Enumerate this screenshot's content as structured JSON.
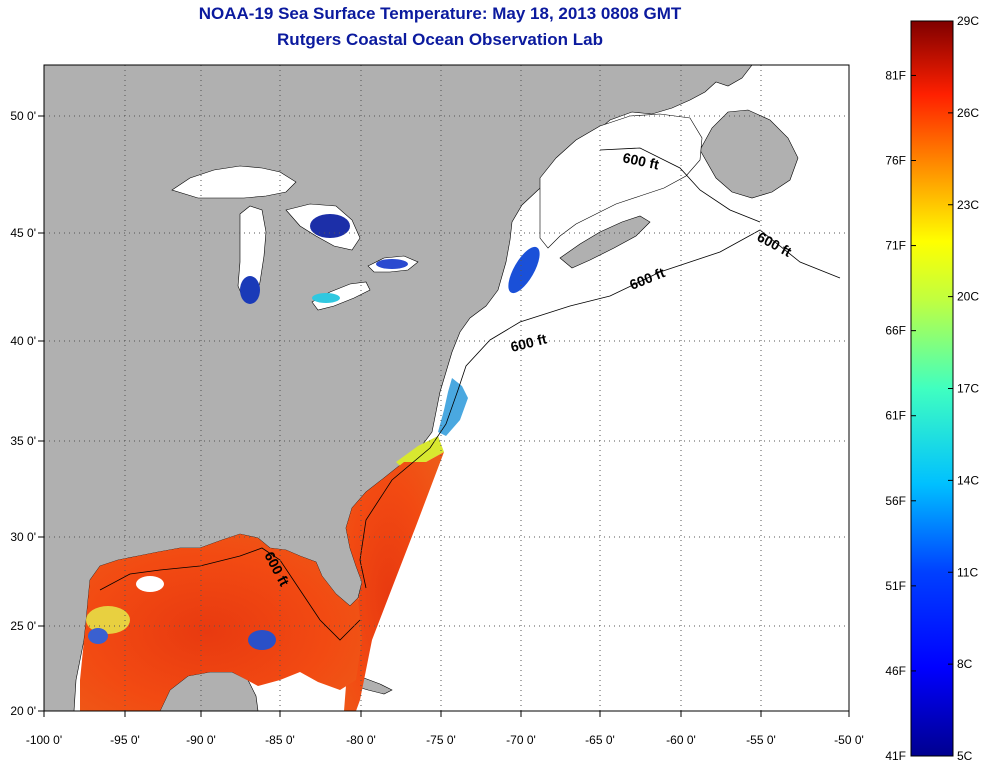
{
  "header": {
    "title": "NOAA-19 Sea Surface Temperature:  May 18, 2013 0808 GMT",
    "subtitle": "Rutgers Coastal Ocean Observation Lab"
  },
  "map": {
    "x_ticks": [
      "-100 0'",
      "-95 0'",
      "-90 0'",
      "-85 0'",
      "-80 0'",
      "-75 0'",
      "-70 0'",
      "-65 0'",
      "-60 0'",
      "-55 0'",
      "-50 0'"
    ],
    "y_ticks": [
      "50 0'",
      "45 0'",
      "40 0'",
      "35 0'",
      "30 0'",
      "25 0'",
      "20 0'"
    ],
    "contour_label": "600 ft",
    "colors": {
      "land": "#b0b0b0",
      "no_data": "#ffffff",
      "frame": "#000000",
      "grid": "#555555"
    }
  },
  "colorbar": {
    "celsius": [
      "29C",
      "26C",
      "23C",
      "20C",
      "17C",
      "14C",
      "11C",
      "8C",
      "5C"
    ],
    "fahrenheit": [
      "81F",
      "76F",
      "71F",
      "66F",
      "61F",
      "56F",
      "51F",
      "46F",
      "41F"
    ],
    "range_c": [
      5,
      29
    ],
    "colors": [
      "#7f0000",
      "#ff0000",
      "#ff8000",
      "#ffff00",
      "#80ff80",
      "#00ffff",
      "#0080ff",
      "#0000ff",
      "#00008f"
    ]
  }
}
